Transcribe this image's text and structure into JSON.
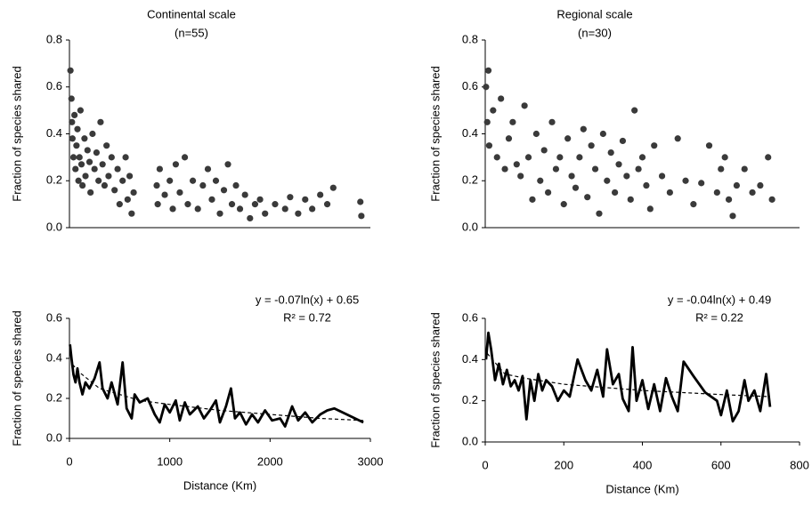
{
  "chart_data": [
    {
      "type": "scatter",
      "title": "Continental scale",
      "subtitle": "(n=55)",
      "y_label": "Fraction of species shared",
      "xlim": [
        0,
        3000
      ],
      "ylim": [
        0,
        0.8
      ],
      "yticks": [
        {
          "value": 0,
          "label": "0.0"
        },
        {
          "value": 0.2,
          "label": "0.2"
        },
        {
          "value": 0.4,
          "label": "0.4"
        },
        {
          "value": 0.6,
          "label": "0.6"
        },
        {
          "value": 0.8,
          "label": "0.8"
        }
      ],
      "series": [
        {
          "color": "#3a3a3a",
          "x": [
            10,
            20,
            25,
            30,
            40,
            50,
            60,
            70,
            80,
            90,
            100,
            110,
            120,
            130,
            150,
            160,
            180,
            200,
            210,
            230,
            250,
            270,
            290,
            310,
            330,
            350,
            370,
            390,
            420,
            450,
            480,
            500,
            530,
            560,
            580,
            600,
            620,
            640,
            870,
            880,
            900,
            950,
            1000,
            1030,
            1060,
            1100,
            1150,
            1180,
            1230,
            1280,
            1330,
            1380,
            1420,
            1460,
            1500,
            1540,
            1580,
            1620,
            1660,
            1700,
            1750,
            1800,
            1850,
            1900,
            1950,
            2050,
            2150,
            2200,
            2280,
            2350,
            2420,
            2500,
            2570,
            2630,
            2900,
            2910
          ],
          "values": [
            0.67,
            0.55,
            0.45,
            0.38,
            0.3,
            0.48,
            0.25,
            0.35,
            0.42,
            0.2,
            0.3,
            0.5,
            0.27,
            0.18,
            0.38,
            0.22,
            0.33,
            0.28,
            0.15,
            0.4,
            0.25,
            0.32,
            0.2,
            0.45,
            0.27,
            0.18,
            0.35,
            0.22,
            0.3,
            0.16,
            0.25,
            0.1,
            0.2,
            0.3,
            0.12,
            0.22,
            0.06,
            0.15,
            0.18,
            0.1,
            0.25,
            0.14,
            0.2,
            0.08,
            0.27,
            0.15,
            0.3,
            0.1,
            0.2,
            0.08,
            0.18,
            0.25,
            0.12,
            0.2,
            0.06,
            0.16,
            0.27,
            0.1,
            0.18,
            0.08,
            0.14,
            0.04,
            0.1,
            0.12,
            0.06,
            0.1,
            0.08,
            0.13,
            0.06,
            0.12,
            0.08,
            0.14,
            0.1,
            0.17,
            0.11,
            0.05
          ]
        }
      ]
    },
    {
      "type": "line",
      "y_label": "Fraction of species shared",
      "x_label": "Distance (Km)",
      "equation": "y = -0.07ln(x) + 0.65",
      "r2": "R² = 0.72",
      "xlim": [
        0,
        3000
      ],
      "xticks": [
        0,
        1000,
        2000,
        3000
      ],
      "ylim": [
        0,
        0.6
      ],
      "yticks": [
        {
          "value": 0,
          "label": "0.0"
        },
        {
          "value": 0.2,
          "label": "0.2"
        },
        {
          "value": 0.4,
          "label": "0.4"
        },
        {
          "value": 0.6,
          "label": "0.6"
        }
      ],
      "series": [
        {
          "color": "#000000",
          "x": [
            5,
            20,
            40,
            60,
            80,
            100,
            130,
            160,
            200,
            250,
            300,
            330,
            380,
            420,
            480,
            530,
            570,
            620,
            650,
            700,
            780,
            850,
            900,
            950,
            1000,
            1060,
            1100,
            1150,
            1200,
            1280,
            1340,
            1400,
            1460,
            1500,
            1560,
            1610,
            1650,
            1700,
            1760,
            1820,
            1880,
            1950,
            2020,
            2100,
            2150,
            2220,
            2280,
            2350,
            2420,
            2500,
            2570,
            2640,
            2930
          ],
          "values": [
            0.47,
            0.4,
            0.32,
            0.28,
            0.35,
            0.28,
            0.22,
            0.28,
            0.25,
            0.3,
            0.38,
            0.25,
            0.2,
            0.28,
            0.17,
            0.38,
            0.15,
            0.1,
            0.22,
            0.18,
            0.2,
            0.12,
            0.08,
            0.17,
            0.13,
            0.19,
            0.09,
            0.18,
            0.12,
            0.16,
            0.1,
            0.14,
            0.19,
            0.08,
            0.16,
            0.25,
            0.1,
            0.13,
            0.07,
            0.12,
            0.08,
            0.14,
            0.09,
            0.1,
            0.06,
            0.16,
            0.09,
            0.13,
            0.08,
            0.12,
            0.14,
            0.15,
            0.08
          ]
        }
      ],
      "trend": {
        "color": "#000000",
        "dashed": true,
        "x": [
          30,
          100,
          300,
          700,
          1000,
          1500,
          2000,
          2500,
          2930
        ],
        "values": [
          0.37,
          0.33,
          0.25,
          0.19,
          0.17,
          0.14,
          0.12,
          0.1,
          0.09
        ]
      }
    },
    {
      "type": "scatter",
      "title": "Regional scale",
      "subtitle": "(n=30)",
      "y_label": "Fraction of species shared",
      "xlim": [
        0,
        800
      ],
      "ylim": [
        0,
        0.8
      ],
      "yticks": [
        {
          "value": 0,
          "label": "0.0"
        },
        {
          "value": 0.2,
          "label": "0.2"
        },
        {
          "value": 0.4,
          "label": "0.4"
        },
        {
          "value": 0.6,
          "label": "0.6"
        },
        {
          "value": 0.8,
          "label": "0.8"
        }
      ],
      "series": [
        {
          "color": "#3a3a3a",
          "x": [
            2,
            5,
            8,
            10,
            20,
            30,
            40,
            50,
            60,
            70,
            80,
            90,
            100,
            110,
            120,
            130,
            140,
            150,
            160,
            170,
            180,
            190,
            200,
            210,
            220,
            230,
            240,
            250,
            260,
            270,
            280,
            290,
            300,
            310,
            320,
            330,
            340,
            350,
            360,
            370,
            380,
            390,
            400,
            410,
            420,
            430,
            450,
            470,
            490,
            510,
            530,
            550,
            570,
            590,
            600,
            610,
            620,
            630,
            640,
            660,
            680,
            700,
            720,
            730
          ],
          "values": [
            0.6,
            0.45,
            0.67,
            0.35,
            0.5,
            0.3,
            0.55,
            0.25,
            0.38,
            0.45,
            0.27,
            0.22,
            0.52,
            0.3,
            0.12,
            0.4,
            0.2,
            0.33,
            0.15,
            0.45,
            0.25,
            0.3,
            0.1,
            0.38,
            0.22,
            0.17,
            0.3,
            0.42,
            0.13,
            0.35,
            0.25,
            0.06,
            0.4,
            0.2,
            0.32,
            0.15,
            0.27,
            0.37,
            0.22,
            0.12,
            0.5,
            0.25,
            0.3,
            0.18,
            0.08,
            0.35,
            0.22,
            0.15,
            0.38,
            0.2,
            0.1,
            0.19,
            0.35,
            0.15,
            0.25,
            0.3,
            0.12,
            0.05,
            0.18,
            0.25,
            0.15,
            0.18,
            0.3,
            0.12
          ]
        }
      ]
    },
    {
      "type": "line",
      "y_label": "Fraction of species shared",
      "x_label": "Distance (Km)",
      "equation": "y = -0.04ln(x) + 0.49",
      "r2": "R² = 0.22",
      "xlim": [
        0,
        800
      ],
      "xticks": [
        0,
        200,
        400,
        600,
        800
      ],
      "ylim": [
        0,
        0.6
      ],
      "yticks": [
        {
          "value": 0,
          "label": "0.0"
        },
        {
          "value": 0.2,
          "label": "0.2"
        },
        {
          "value": 0.4,
          "label": "0.4"
        },
        {
          "value": 0.6,
          "label": "0.6"
        }
      ],
      "series": [
        {
          "color": "#000000",
          "x": [
            2,
            8,
            15,
            25,
            35,
            45,
            55,
            65,
            75,
            85,
            95,
            105,
            115,
            125,
            135,
            145,
            155,
            170,
            185,
            200,
            215,
            235,
            255,
            270,
            285,
            300,
            310,
            325,
            340,
            350,
            365,
            375,
            385,
            400,
            415,
            430,
            445,
            460,
            475,
            490,
            505,
            530,
            560,
            590,
            600,
            615,
            630,
            645,
            660,
            670,
            685,
            700,
            715,
            725
          ],
          "values": [
            0.4,
            0.53,
            0.45,
            0.3,
            0.38,
            0.28,
            0.35,
            0.27,
            0.3,
            0.25,
            0.32,
            0.11,
            0.3,
            0.2,
            0.33,
            0.25,
            0.3,
            0.27,
            0.2,
            0.25,
            0.22,
            0.4,
            0.3,
            0.25,
            0.35,
            0.22,
            0.45,
            0.28,
            0.33,
            0.21,
            0.15,
            0.46,
            0.2,
            0.3,
            0.16,
            0.28,
            0.15,
            0.31,
            0.22,
            0.15,
            0.39,
            0.32,
            0.24,
            0.2,
            0.13,
            0.25,
            0.1,
            0.15,
            0.3,
            0.2,
            0.25,
            0.15,
            0.33,
            0.17
          ]
        }
      ],
      "trend": {
        "color": "#000000",
        "dashed": true,
        "x": [
          5,
          50,
          100,
          200,
          400,
          600,
          725
        ],
        "values": [
          0.43,
          0.33,
          0.31,
          0.28,
          0.25,
          0.23,
          0.22
        ]
      }
    }
  ]
}
